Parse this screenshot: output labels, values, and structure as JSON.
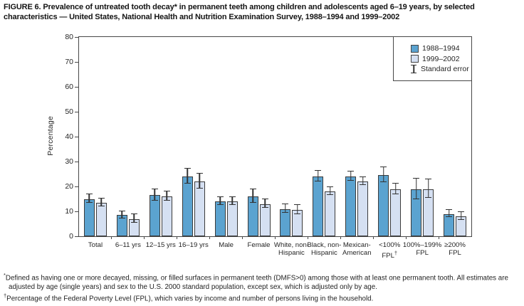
{
  "title": "FIGURE 6. Prevalence of untreated tooth decay* in permanent teeth among children and adolescents aged 6–19 years, by selected characteristics — United States, National Health and Nutrition Examination Survey, 1988–1994 and 1999–2002",
  "colors": {
    "series1": "#5ba3d0",
    "series2": "#d5e0f2",
    "axis": "#474747",
    "error_bar": "#333333"
  },
  "legend": {
    "standard_error_label": "Standard error"
  },
  "chart_data": {
    "type": "bar",
    "title": "",
    "xlabel": "",
    "ylabel": "Percentage",
    "ylim": [
      0,
      80
    ],
    "ytick_step": 10,
    "grid": false,
    "legend_position": "top-right",
    "categories": [
      "Total",
      "6–11 yrs",
      "12–15 yrs",
      "16–19 yrs",
      "Male",
      "Female",
      "White, non-\nHispanic",
      "Black, non-\nHispanic",
      "Mexican-\nAmerican",
      "<100%\nFPL†",
      "100%–199%\nFPL",
      "≥200%\nFPL"
    ],
    "series": [
      {
        "name": "1988–1994",
        "values": [
          15,
          8.5,
          16.5,
          24,
          14,
          16,
          11,
          24,
          24,
          24.5,
          19,
          9
        ],
        "standard_errors": [
          1.6,
          1.3,
          2.2,
          2.8,
          1.5,
          2.5,
          1.5,
          2,
          1.6,
          2.8,
          4,
          1.4
        ]
      },
      {
        "name": "1999–2002",
        "values": [
          13.5,
          7,
          16,
          22,
          14,
          13,
          10.5,
          18,
          22,
          19,
          19,
          8
        ],
        "standard_errors": [
          1.4,
          1.6,
          1.7,
          2.8,
          1.5,
          1.5,
          1.7,
          1.5,
          1.4,
          2,
          3.5,
          1.4
        ]
      }
    ]
  },
  "footnotes": [
    {
      "marker": "*",
      "text": "Defined as having one or more decayed, missing, or filled surfaces in permanent teeth (DMFS>0) among those with at least one permanent tooth. All estimates are adjusted by age (single years) and sex to the U.S. 2000 standard population, except sex, which is adjusted only by age."
    },
    {
      "marker": "†",
      "text": "Percentage of the Federal Poverty Level (FPL), which varies by income and number of persons living in the household."
    }
  ]
}
